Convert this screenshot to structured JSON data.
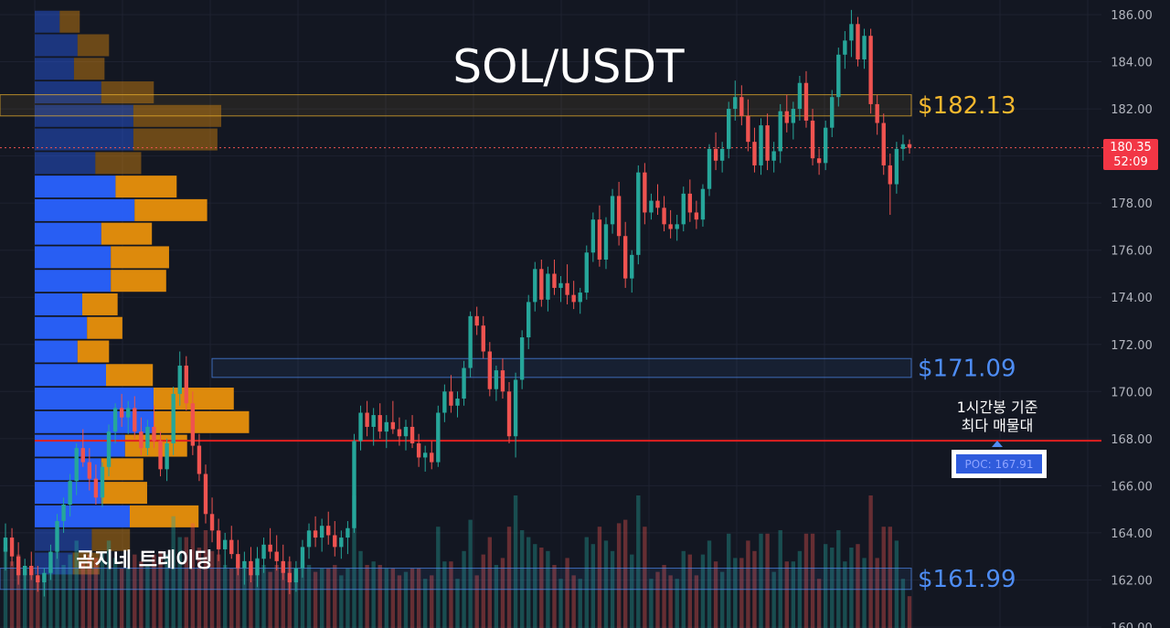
{
  "header": {
    "title": "SOL/USDT"
  },
  "watermark": "곰지네 트레이딩",
  "annotation": {
    "line1": "1시간봉 기준",
    "line2": "최다 매물대"
  },
  "poc": {
    "label": "POC: 167.91",
    "price": 167.91
  },
  "current": {
    "price_label": "180.35",
    "countdown": "52:09",
    "price": 180.35
  },
  "zones": [
    {
      "label": "$182.13",
      "top": 182.6,
      "bottom": 181.7,
      "color": "#f5b82e"
    },
    {
      "label": "$171.09",
      "top": 171.4,
      "bottom": 170.6,
      "color": "#4e8df5"
    },
    {
      "label": "$161.99",
      "top": 162.5,
      "bottom": 161.6,
      "color": "#4e8df5"
    }
  ],
  "chart_data": {
    "type": "candlestick",
    "symbol": "SOL/USDT",
    "timeframe_note": "1시간봉",
    "y_ticks": [
      "186.00",
      "184.00",
      "182.00",
      "180.00",
      "178.00",
      "176.00",
      "174.00",
      "172.00",
      "170.00",
      "168.00",
      "166.00",
      "164.00",
      "162.00",
      "160.00"
    ],
    "ylim": [
      160,
      186.6
    ],
    "colors": {
      "up": "#26a69a",
      "down": "#ef5350",
      "vp_buy": "#2962ff",
      "vp_sell": "#e8900c"
    },
    "candles": [
      [
        163.2,
        164.4,
        162.4,
        163.8
      ],
      [
        163.8,
        164.2,
        162.6,
        163.0
      ],
      [
        163.0,
        163.6,
        161.8,
        162.2
      ],
      [
        162.2,
        162.9,
        161.6,
        162.6
      ],
      [
        162.6,
        163.2,
        162.0,
        162.2
      ],
      [
        162.2,
        162.6,
        161.5,
        161.9
      ],
      [
        161.9,
        162.5,
        161.3,
        162.3
      ],
      [
        162.3,
        163.5,
        162.0,
        163.2
      ],
      [
        163.2,
        164.8,
        162.9,
        164.5
      ],
      [
        164.5,
        165.5,
        164.0,
        165.2
      ],
      [
        165.2,
        166.5,
        164.7,
        166.2
      ],
      [
        166.2,
        167.8,
        165.6,
        167.6
      ],
      [
        167.6,
        168.4,
        166.8,
        167.0
      ],
      [
        167.0,
        167.6,
        165.8,
        166.3
      ],
      [
        166.3,
        166.9,
        165.2,
        165.5
      ],
      [
        165.5,
        167.0,
        165.1,
        166.8
      ],
      [
        166.8,
        168.6,
        166.4,
        168.3
      ],
      [
        168.3,
        169.5,
        167.8,
        169.3
      ],
      [
        169.3,
        169.9,
        168.5,
        168.9
      ],
      [
        168.9,
        169.6,
        168.2,
        169.3
      ],
      [
        169.3,
        169.8,
        168.0,
        168.3
      ],
      [
        168.3,
        168.9,
        167.3,
        167.6
      ],
      [
        167.6,
        168.8,
        167.3,
        168.5
      ],
      [
        168.5,
        169.4,
        167.6,
        167.9
      ],
      [
        167.9,
        168.3,
        166.4,
        166.7
      ],
      [
        166.7,
        168.0,
        166.2,
        167.8
      ],
      [
        167.8,
        170.2,
        167.3,
        169.9
      ],
      [
        169.9,
        171.7,
        169.4,
        171.1
      ],
      [
        171.1,
        171.5,
        169.2,
        169.5
      ],
      [
        169.5,
        170.0,
        167.3,
        167.7
      ],
      [
        167.7,
        168.2,
        166.2,
        166.5
      ],
      [
        166.5,
        166.9,
        164.4,
        164.8
      ],
      [
        164.8,
        165.5,
        163.6,
        164.1
      ],
      [
        164.1,
        164.6,
        162.8,
        163.3
      ],
      [
        163.3,
        164.0,
        162.5,
        163.7
      ],
      [
        163.7,
        164.3,
        162.9,
        163.1
      ],
      [
        163.1,
        163.7,
        162.2,
        162.5
      ],
      [
        162.5,
        163.2,
        161.8,
        162.8
      ],
      [
        162.8,
        163.4,
        161.9,
        162.2
      ],
      [
        162.2,
        163.4,
        161.7,
        162.9
      ],
      [
        162.9,
        163.8,
        162.3,
        163.5
      ],
      [
        163.5,
        164.2,
        162.9,
        163.2
      ],
      [
        163.2,
        163.9,
        162.4,
        162.8
      ],
      [
        162.8,
        163.5,
        162.0,
        162.3
      ],
      [
        162.3,
        163.0,
        161.4,
        161.9
      ],
      [
        161.9,
        162.8,
        161.5,
        162.5
      ],
      [
        162.5,
        163.7,
        162.1,
        163.4
      ],
      [
        163.4,
        164.4,
        162.9,
        164.1
      ],
      [
        164.1,
        164.7,
        163.4,
        163.8
      ],
      [
        163.8,
        164.6,
        163.2,
        164.3
      ],
      [
        164.3,
        164.9,
        163.5,
        163.9
      ],
      [
        163.9,
        164.5,
        163.0,
        163.4
      ],
      [
        163.4,
        164.1,
        162.9,
        163.8
      ],
      [
        163.8,
        164.5,
        163.1,
        164.2
      ],
      [
        164.2,
        168.2,
        164.0,
        167.9
      ],
      [
        167.9,
        169.4,
        167.5,
        169.1
      ],
      [
        169.1,
        169.6,
        168.1,
        168.5
      ],
      [
        168.5,
        169.3,
        167.7,
        169.0
      ],
      [
        169.0,
        169.5,
        168.0,
        168.3
      ],
      [
        168.3,
        169.0,
        167.6,
        168.7
      ],
      [
        168.7,
        169.6,
        168.2,
        168.4
      ],
      [
        168.4,
        168.9,
        167.7,
        168.1
      ],
      [
        168.1,
        168.8,
        167.5,
        168.5
      ],
      [
        168.5,
        169.0,
        167.6,
        167.8
      ],
      [
        167.8,
        168.2,
        166.8,
        167.2
      ],
      [
        167.2,
        167.7,
        166.6,
        167.4
      ],
      [
        167.4,
        167.9,
        166.7,
        167.0
      ],
      [
        167.0,
        169.4,
        166.8,
        169.1
      ],
      [
        169.1,
        170.3,
        168.7,
        170.0
      ],
      [
        170.0,
        170.7,
        169.1,
        169.4
      ],
      [
        169.4,
        170.0,
        168.9,
        169.7
      ],
      [
        169.7,
        171.3,
        169.4,
        171.0
      ],
      [
        171.0,
        173.4,
        170.6,
        173.2
      ],
      [
        173.2,
        173.6,
        172.4,
        172.8
      ],
      [
        172.8,
        173.2,
        171.4,
        171.7
      ],
      [
        171.7,
        172.1,
        169.8,
        170.1
      ],
      [
        170.1,
        171.1,
        169.6,
        170.9
      ],
      [
        170.9,
        171.4,
        169.7,
        170.0
      ],
      [
        170.0,
        170.4,
        167.8,
        168.1
      ],
      [
        168.1,
        170.8,
        167.2,
        170.5
      ],
      [
        170.5,
        172.6,
        170.1,
        172.3
      ],
      [
        172.3,
        174.1,
        171.8,
        173.8
      ],
      [
        173.8,
        175.5,
        173.4,
        175.2
      ],
      [
        175.2,
        175.6,
        173.6,
        173.9
      ],
      [
        173.9,
        175.3,
        173.4,
        175.0
      ],
      [
        175.0,
        175.6,
        174.1,
        174.4
      ],
      [
        174.4,
        174.9,
        173.8,
        174.6
      ],
      [
        174.6,
        175.4,
        173.7,
        174.1
      ],
      [
        174.1,
        174.7,
        173.5,
        173.8
      ],
      [
        173.8,
        174.4,
        173.3,
        174.2
      ],
      [
        174.2,
        176.2,
        173.9,
        175.9
      ],
      [
        175.9,
        177.6,
        175.5,
        177.3
      ],
      [
        177.3,
        177.9,
        175.3,
        175.6
      ],
      [
        175.6,
        177.4,
        175.2,
        177.1
      ],
      [
        177.1,
        178.6,
        176.7,
        178.3
      ],
      [
        178.3,
        178.9,
        176.2,
        176.6
      ],
      [
        176.6,
        177.2,
        174.4,
        174.8
      ],
      [
        174.8,
        176.0,
        174.2,
        175.8
      ],
      [
        175.8,
        179.6,
        175.4,
        179.3
      ],
      [
        179.3,
        179.7,
        177.1,
        177.6
      ],
      [
        177.6,
        178.4,
        177.3,
        178.1
      ],
      [
        178.1,
        178.8,
        177.5,
        177.8
      ],
      [
        177.8,
        178.3,
        176.8,
        177.1
      ],
      [
        177.1,
        177.7,
        176.5,
        176.9
      ],
      [
        176.9,
        177.5,
        176.4,
        177.1
      ],
      [
        177.1,
        178.7,
        176.8,
        178.4
      ],
      [
        178.4,
        179.0,
        177.2,
        177.6
      ],
      [
        177.6,
        178.1,
        176.9,
        177.3
      ],
      [
        177.3,
        178.8,
        177.0,
        178.6
      ],
      [
        178.6,
        180.5,
        178.3,
        180.3
      ],
      [
        180.3,
        181.0,
        179.4,
        179.8
      ],
      [
        179.8,
        180.6,
        179.3,
        180.3
      ],
      [
        180.3,
        182.3,
        179.9,
        182.0
      ],
      [
        182.0,
        183.2,
        181.5,
        182.5
      ],
      [
        182.5,
        183.0,
        181.3,
        181.7
      ],
      [
        181.7,
        182.4,
        180.2,
        180.6
      ],
      [
        180.6,
        181.2,
        179.3,
        179.6
      ],
      [
        179.6,
        181.6,
        179.2,
        181.3
      ],
      [
        181.3,
        181.8,
        179.4,
        179.8
      ],
      [
        179.8,
        180.6,
        179.3,
        180.2
      ],
      [
        180.2,
        182.2,
        179.7,
        181.9
      ],
      [
        181.9,
        182.6,
        181.0,
        181.4
      ],
      [
        181.4,
        182.3,
        180.7,
        182.0
      ],
      [
        182.0,
        183.4,
        181.5,
        183.1
      ],
      [
        183.1,
        183.6,
        181.2,
        181.5
      ],
      [
        181.5,
        182.0,
        179.6,
        179.9
      ],
      [
        179.9,
        180.3,
        179.2,
        179.7
      ],
      [
        179.7,
        181.5,
        179.4,
        181.2
      ],
      [
        181.2,
        182.8,
        180.8,
        182.5
      ],
      [
        182.5,
        184.6,
        182.1,
        184.3
      ],
      [
        184.3,
        185.3,
        183.7,
        184.9
      ],
      [
        184.9,
        186.2,
        184.2,
        185.6
      ],
      [
        185.6,
        185.9,
        183.8,
        184.1
      ],
      [
        184.1,
        185.4,
        183.7,
        185.1
      ],
      [
        185.1,
        185.4,
        181.8,
        182.2
      ],
      [
        182.2,
        182.6,
        180.9,
        181.4
      ],
      [
        181.4,
        181.8,
        179.2,
        179.6
      ],
      [
        179.6,
        180.1,
        177.5,
        178.8
      ],
      [
        178.8,
        180.6,
        178.4,
        180.3
      ],
      [
        180.3,
        180.9,
        179.8,
        180.5
      ],
      [
        180.5,
        180.7,
        180.1,
        180.35
      ]
    ],
    "volume_profile": [
      {
        "price": 185.7,
        "buy": 0.21,
        "sell": 0.21,
        "faded": true
      },
      {
        "price": 184.7,
        "buy": 0.36,
        "sell": 0.33,
        "faded": true
      },
      {
        "price": 183.7,
        "buy": 0.33,
        "sell": 0.32,
        "faded": true
      },
      {
        "price": 182.7,
        "buy": 0.56,
        "sell": 0.55,
        "faded": true
      },
      {
        "price": 181.7,
        "buy": 0.83,
        "sell": 0.92,
        "faded": true
      },
      {
        "price": 180.7,
        "buy": 0.83,
        "sell": 0.88,
        "faded": true
      },
      {
        "price": 179.7,
        "buy": 0.51,
        "sell": 0.48,
        "faded": true
      },
      {
        "price": 178.7,
        "buy": 0.68,
        "sell": 0.64
      },
      {
        "price": 177.7,
        "buy": 0.84,
        "sell": 0.76
      },
      {
        "price": 176.7,
        "buy": 0.56,
        "sell": 0.53
      },
      {
        "price": 175.7,
        "buy": 0.64,
        "sell": 0.61
      },
      {
        "price": 174.7,
        "buy": 0.64,
        "sell": 0.58
      },
      {
        "price": 173.7,
        "buy": 0.4,
        "sell": 0.37
      },
      {
        "price": 172.7,
        "buy": 0.44,
        "sell": 0.37
      },
      {
        "price": 171.7,
        "buy": 0.36,
        "sell": 0.33
      },
      {
        "price": 170.7,
        "buy": 0.6,
        "sell": 0.49
      },
      {
        "price": 169.7,
        "buy": 1.0,
        "sell": 0.84
      },
      {
        "price": 168.7,
        "buy": 1.0,
        "sell": 1.0
      },
      {
        "price": 167.7,
        "buy": 0.76,
        "sell": 0.65
      },
      {
        "price": 166.7,
        "buy": 0.56,
        "sell": 0.44
      },
      {
        "price": 165.7,
        "buy": 0.56,
        "sell": 0.48
      },
      {
        "price": 164.7,
        "buy": 0.8,
        "sell": 0.72
      },
      {
        "price": 163.7,
        "buy": 0.48,
        "sell": 0.4,
        "faded": true
      },
      {
        "price": 162.7,
        "buy": 0.32,
        "sell": 0.28,
        "faded": true
      }
    ]
  }
}
